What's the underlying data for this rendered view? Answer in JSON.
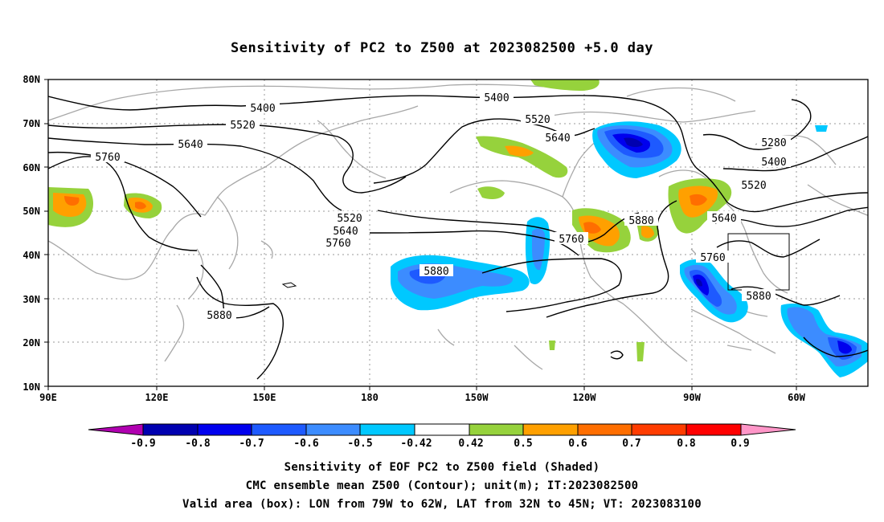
{
  "title": "Sensitivity of PC2 to Z500 at 2023082500 +5.0 day",
  "axes": {
    "lat_labels": [
      "80N",
      "70N",
      "60N",
      "50N",
      "40N",
      "30N",
      "20N",
      "10N"
    ],
    "lon_labels": [
      "90E",
      "120E",
      "150E",
      "180",
      "150W",
      "120W",
      "90W",
      "60W"
    ]
  },
  "contour_labels": [
    "5400",
    "5400",
    "5520",
    "5520",
    "5640",
    "5640",
    "5760",
    "5760",
    "5880",
    "5880",
    "5280",
    "5400",
    "5520",
    "5640",
    "5520",
    "5640",
    "5760",
    "5880",
    "5760",
    "5880"
  ],
  "colorbar": {
    "labels": [
      "-0.9",
      "-0.8",
      "-0.7",
      "-0.6",
      "-0.5",
      "-0.42",
      "0.42",
      "0.5",
      "0.6",
      "0.7",
      "0.8",
      "0.9"
    ],
    "colors": [
      "#b000b0",
      "#0000b0",
      "#0000ee",
      "#1e5aff",
      "#3c8cff",
      "#00c8ff",
      "#ffffff",
      "#96d23c",
      "#ffa000",
      "#ff6e00",
      "#ff3c00",
      "#ff0000",
      "#ff96c8"
    ]
  },
  "shading_colors": {
    "green": "#96d23c",
    "orange": "#ffa000",
    "dark_orange": "#ff6e00",
    "cyan": "#00c8ff",
    "light_blue": "#3c8cff",
    "blue": "#1e5aff",
    "dark_blue": "#0000b0"
  },
  "captions": {
    "line1": "Sensitivity of EOF PC2 to Z500 field (Shaded)",
    "line2": "CMC ensemble mean Z500 (Contour); unit(m); IT:2023082500",
    "line3": "Valid area (box): LON from 79W to 62W, LAT from 32N to 45N; VT: 2023083100"
  }
}
